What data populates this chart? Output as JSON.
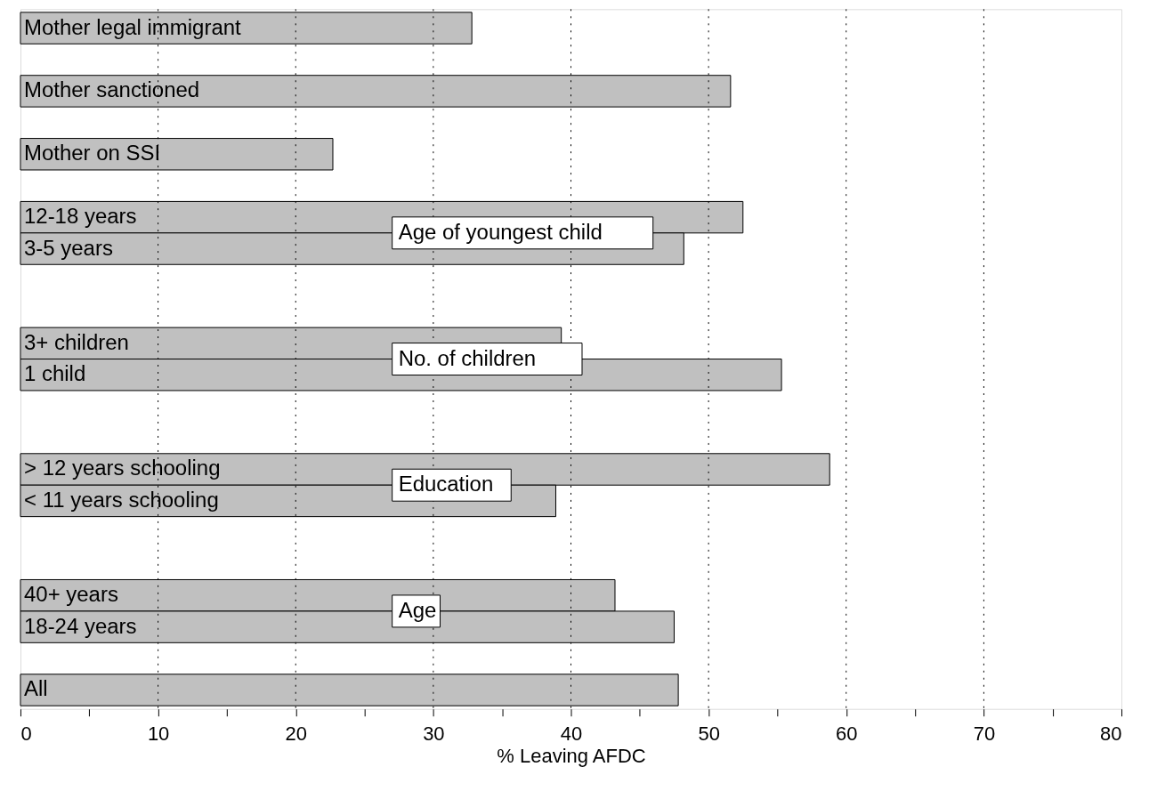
{
  "chart_data": {
    "type": "bar",
    "orientation": "horizontal",
    "xlabel": "% Leaving AFDC",
    "categories": [
      "Mother legal immigrant",
      null,
      "Mother sanctioned",
      null,
      "Mother on SSI",
      null,
      "12-18 years",
      "3-5 years",
      null,
      null,
      "3+ children",
      "1 child",
      null,
      null,
      "> 12 years schooling",
      "< 11 years schooling",
      null,
      null,
      "40+ years",
      "18-24 years",
      null,
      "All"
    ],
    "values": [
      32.8,
      null,
      51.6,
      null,
      22.7,
      null,
      52.5,
      48.2,
      null,
      null,
      39.3,
      55.3,
      null,
      null,
      58.8,
      38.9,
      null,
      null,
      43.2,
      47.5,
      null,
      47.8
    ],
    "color": "#c0c0c0",
    "xlim": [
      0,
      80
    ],
    "xticks": [
      0,
      {
        "value": 5,
        "label": null
      },
      10,
      {
        "value": 15,
        "label": null
      },
      20,
      {
        "value": 25,
        "label": null
      },
      30,
      {
        "value": 35,
        "label": null
      },
      40,
      {
        "value": 45,
        "label": null
      },
      50,
      {
        "value": 55,
        "label": null
      },
      60,
      {
        "value": 65,
        "label": null
      },
      70,
      {
        "value": 75,
        "label": null
      },
      80
    ],
    "grid": "x",
    "annotations": [
      "Age of youngest child",
      "No. of children",
      "Education",
      "Age"
    ]
  }
}
